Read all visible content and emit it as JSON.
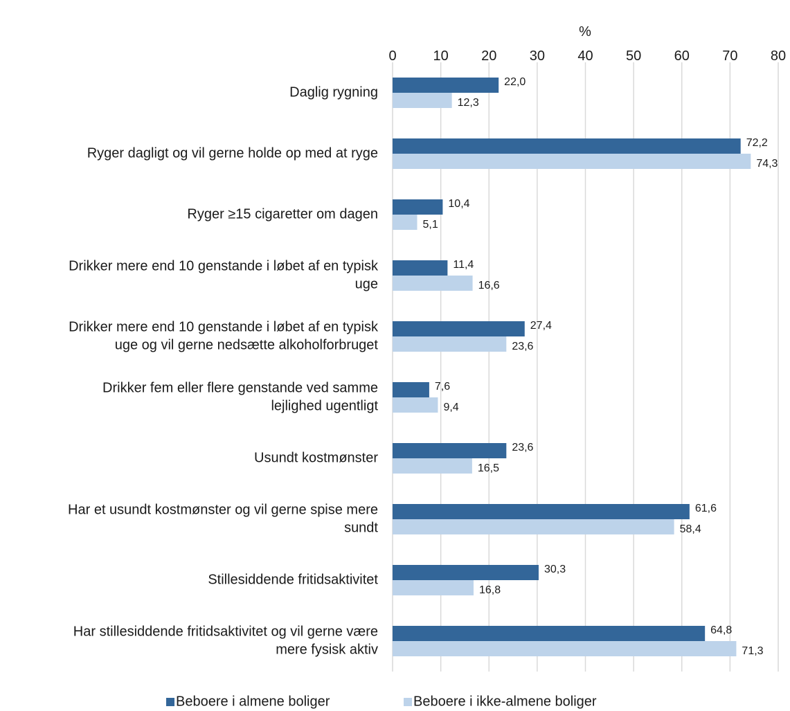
{
  "chart_data": {
    "type": "bar",
    "orientation": "horizontal",
    "xlabel": "%",
    "xlim": [
      0,
      80
    ],
    "xticks": [
      0,
      10,
      20,
      30,
      40,
      50,
      60,
      70,
      80
    ],
    "grid": true,
    "legend_position": "bottom",
    "categories": [
      [
        "Daglig rygning"
      ],
      [
        "Ryger dagligt og vil gerne holde op med at ryge"
      ],
      [
        "Ryger ≥15 cigaretter om dagen"
      ],
      [
        "Drikker mere end 10 genstande i løbet af en typisk",
        "uge"
      ],
      [
        "Drikker mere end 10 genstande i løbet af en typisk",
        "uge og vil gerne nedsætte alkoholforbruget"
      ],
      [
        "Drikker fem eller flere genstande ved samme",
        "lejlighed ugentligt"
      ],
      [
        "Usundt kostmønster"
      ],
      [
        "Har et usundt kostmønster og vil gerne spise mere",
        "sundt"
      ],
      [
        "Stillesiddende fritidsaktivitet"
      ],
      [
        "Har stillesiddende fritidsaktivitet og vil gerne være",
        "mere fysisk aktiv"
      ]
    ],
    "series": [
      {
        "name": "Beboere i almene boliger",
        "color": "#336699",
        "values": [
          22.0,
          72.2,
          10.4,
          11.4,
          27.4,
          7.6,
          23.6,
          61.6,
          30.3,
          64.8
        ],
        "labels": [
          "22,0",
          "72,2",
          "10,4",
          "11,4",
          "27,4",
          "7,6",
          "23,6",
          "61,6",
          "30,3",
          "64,8"
        ]
      },
      {
        "name": "Beboere i ikke-almene boliger",
        "color": "#bdd3ea",
        "values": [
          12.3,
          74.3,
          5.1,
          16.6,
          23.6,
          9.4,
          16.5,
          58.4,
          16.8,
          71.3
        ],
        "labels": [
          "12,3",
          "74,3",
          "5,1",
          "16,6",
          "23,6",
          "9,4",
          "16,5",
          "58,4",
          "16,8",
          "71,3"
        ]
      }
    ]
  }
}
